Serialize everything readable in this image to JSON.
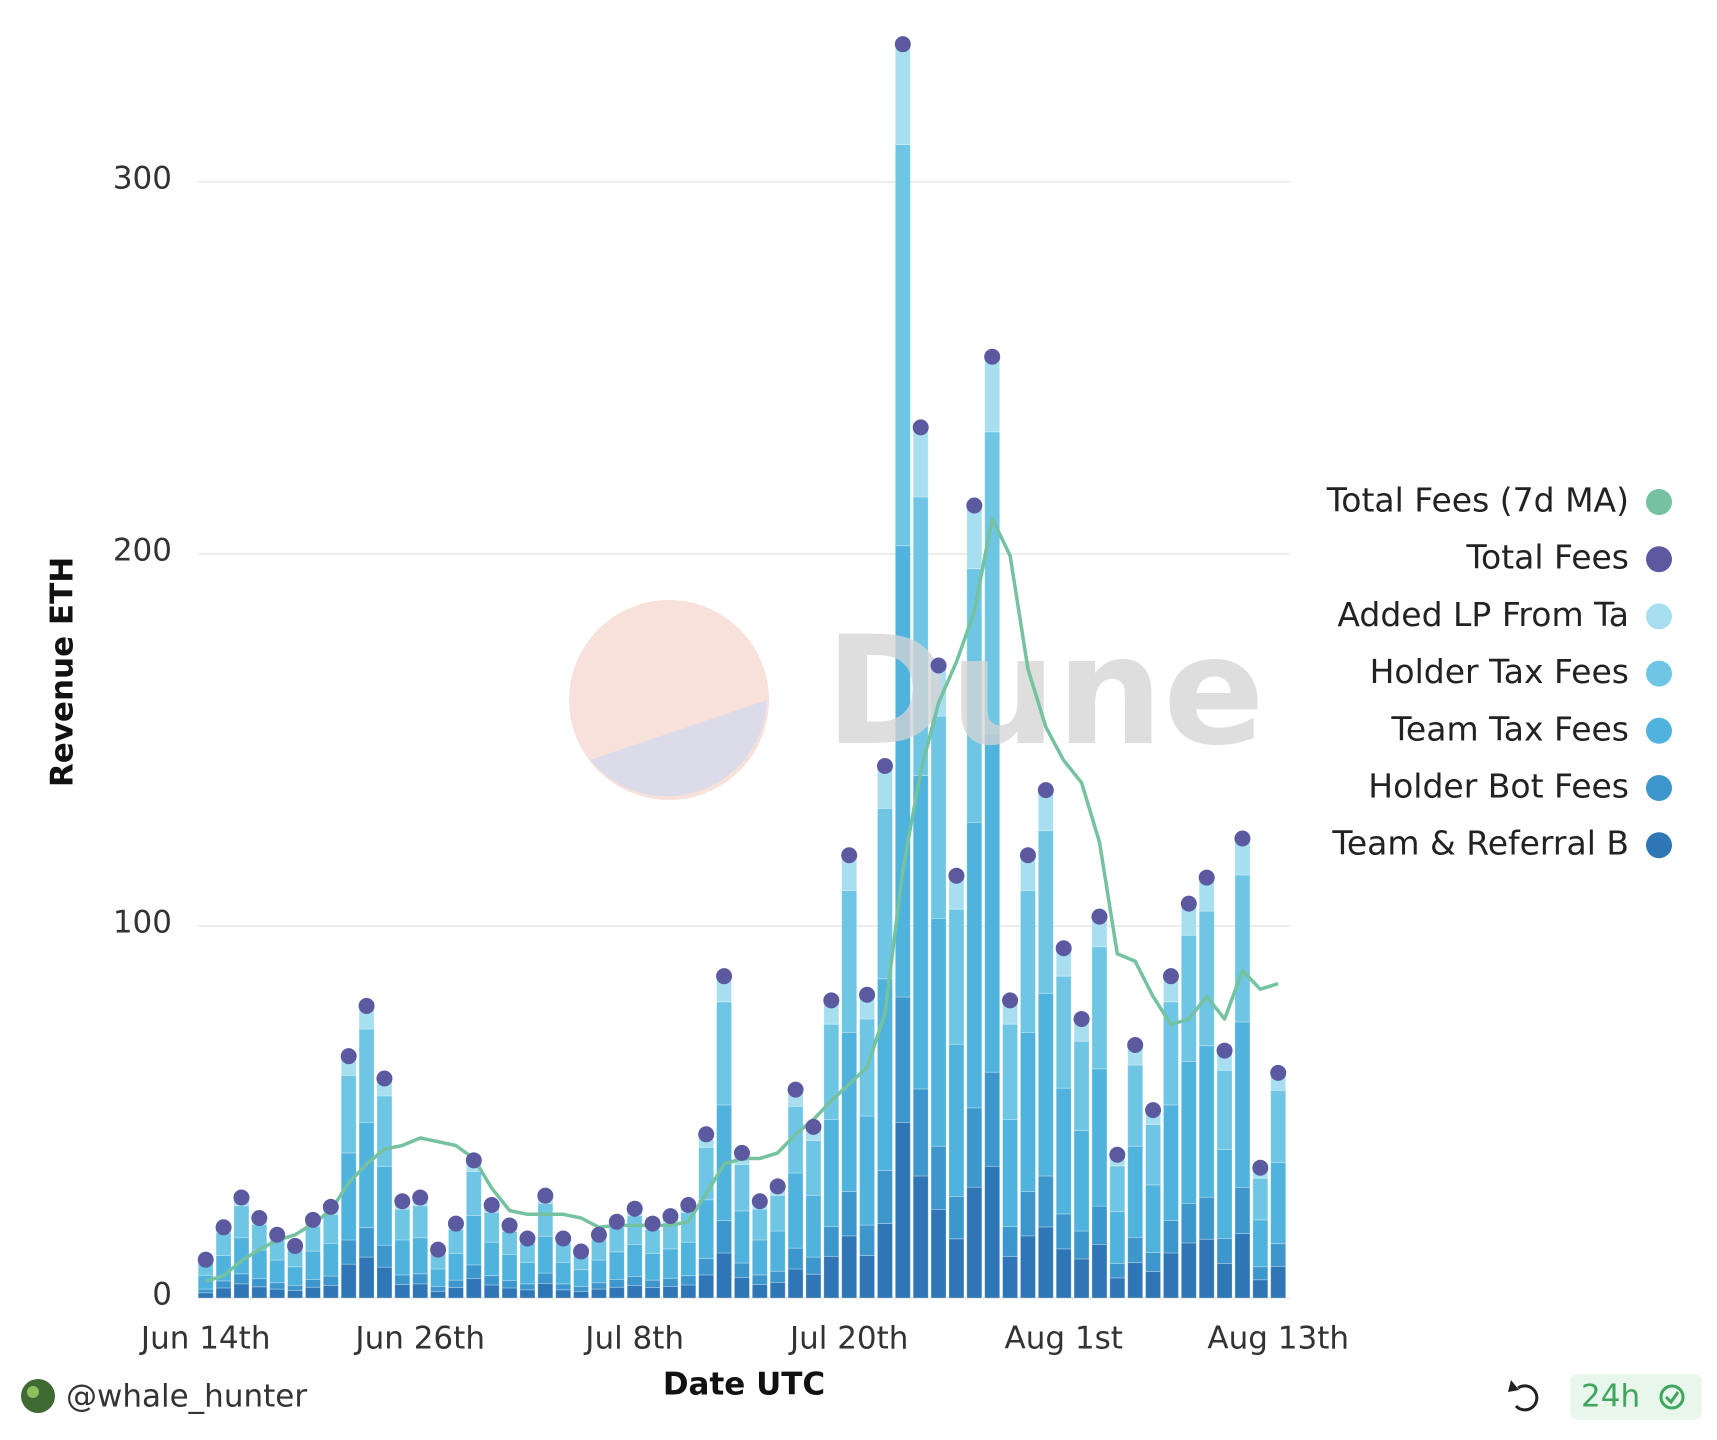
{
  "chart_data": {
    "type": "bar",
    "stacked": true,
    "x_label": "Date UTC",
    "y_label": "Revenue ETH",
    "watermark": "Dune",
    "categories": [
      "Jun 14th",
      null,
      null,
      null,
      null,
      null,
      null,
      null,
      null,
      null,
      null,
      null,
      "Jun 26th",
      null,
      null,
      null,
      null,
      null,
      null,
      null,
      null,
      null,
      null,
      null,
      "Jul 8th",
      null,
      null,
      null,
      null,
      null,
      null,
      null,
      null,
      null,
      null,
      null,
      "Jul 20th",
      null,
      null,
      null,
      null,
      null,
      null,
      null,
      null,
      null,
      null,
      null,
      "Aug 1st",
      null,
      null,
      null,
      null,
      null,
      null,
      null,
      null,
      null,
      null,
      null,
      "Aug 13th"
    ],
    "ylim": [
      0,
      340
    ],
    "yticks": [
      0,
      100,
      200,
      300
    ],
    "grid": true,
    "legend": "right",
    "series": [
      {
        "name": "Total Fees (7d MA)",
        "type": "line",
        "color": "#74c2a0",
        "values": [
          4.5,
          6,
          10,
          13,
          15.5,
          17,
          20,
          23.5,
          31,
          36,
          40,
          41,
          43,
          42,
          41,
          37.5,
          29.5,
          23.5,
          22.5,
          22.5,
          22.5,
          21.5,
          19,
          19.5,
          19.5,
          19.5,
          19.5,
          20.5,
          28,
          36,
          37.5,
          37.5,
          39,
          44,
          48,
          53,
          57.5,
          62,
          76.5,
          115,
          141.5,
          160,
          171,
          184.5,
          209.5,
          199.5,
          169,
          153.5,
          144.5,
          138.5,
          122.5,
          92.5,
          90.5,
          81,
          73.5,
          75,
          81,
          75,
          88,
          83,
          84.5
        ]
      },
      {
        "name": "Total Fees",
        "type": "scatter",
        "color": "#5b5aa0",
        "values": [
          10.3,
          19,
          27,
          21.5,
          17,
          14,
          21,
          24.5,
          65,
          78.5,
          59,
          26,
          27,
          13,
          20,
          37,
          25,
          19.5,
          16,
          27.5,
          16,
          12.5,
          17,
          20.5,
          24,
          20,
          22,
          25,
          44,
          86.5,
          39,
          26,
          30,
          56,
          46,
          80,
          119,
          81.5,
          143,
          337,
          234,
          170,
          113.5,
          213,
          253,
          80,
          119,
          136.5,
          94,
          75,
          102.5,
          38.5,
          68,
          50.5,
          86.5,
          106,
          113,
          66.5,
          123.5,
          35,
          60.5
        ]
      },
      {
        "name": "Added LP From Ta",
        "type": "bar",
        "color": "#a8dff0",
        "values": [
          0.8,
          1.5,
          2.2,
          1.7,
          1.4,
          1.1,
          1.7,
          2.0,
          5.2,
          6.3,
          4.7,
          2.1,
          2.2,
          1.0,
          1.6,
          3.0,
          2.0,
          1.6,
          1.3,
          2.2,
          1.3,
          1.0,
          1.4,
          1.6,
          1.9,
          1.6,
          1.8,
          2.0,
          3.5,
          6.9,
          3.1,
          2.1,
          2.4,
          4.5,
          3.7,
          6.4,
          9.5,
          6.5,
          11.4,
          27.0,
          18.7,
          13.6,
          9.1,
          17.0,
          20.2,
          6.4,
          9.5,
          10.9,
          7.5,
          6.0,
          8.2,
          3.1,
          5.4,
          4.0,
          6.9,
          8.5,
          9.0,
          5.3,
          9.9,
          2.8,
          4.8
        ]
      },
      {
        "name": "Holder Tax Fees",
        "type": "bar",
        "color": "#6ec6e4",
        "values": [
          3.3,
          6.1,
          8.6,
          6.9,
          5.4,
          4.5,
          6.7,
          7.8,
          20.8,
          25.1,
          18.9,
          8.3,
          8.6,
          4.2,
          6.4,
          11.8,
          8.0,
          6.2,
          5.1,
          8.8,
          5.1,
          4.0,
          5.4,
          6.6,
          7.7,
          6.4,
          7.0,
          8.0,
          14.1,
          27.7,
          12.5,
          8.3,
          9.6,
          17.9,
          14.7,
          25.6,
          38.1,
          26.1,
          45.8,
          107.8,
          74.9,
          54.4,
          36.3,
          68.2,
          81.0,
          25.6,
          38.1,
          43.7,
          30.1,
          24.0,
          32.8,
          12.3,
          21.8,
          16.2,
          27.7,
          33.9,
          36.2,
          21.3,
          39.5,
          11.2,
          19.4
        ]
      },
      {
        "name": "Team Tax Fees",
        "type": "bar",
        "color": "#4fb3de",
        "values": [
          3.7,
          6.8,
          9.7,
          7.7,
          6.1,
          5.0,
          7.6,
          8.8,
          23.4,
          28.3,
          21.2,
          9.4,
          9.7,
          4.7,
          7.2,
          13.3,
          9.0,
          7.0,
          5.8,
          9.9,
          5.8,
          4.5,
          6.1,
          7.4,
          8.6,
          7.2,
          7.9,
          9.0,
          15.8,
          31.1,
          14.0,
          9.4,
          10.8,
          20.2,
          16.6,
          28.8,
          42.8,
          29.3,
          51.5,
          121.3,
          84.2,
          61.2,
          40.9,
          76.7,
          91.1,
          28.8,
          42.8,
          49.1,
          33.8,
          27.0,
          36.9,
          13.9,
          24.5,
          18.2,
          31.1,
          38.2,
          40.7,
          23.9,
          44.5,
          12.6,
          21.8
        ]
      },
      {
        "name": "Holder Bot Fees",
        "type": "bar",
        "color": "#3d97cc",
        "values": [
          1.0,
          1.9,
          2.7,
          2.2,
          1.7,
          1.4,
          2.1,
          2.5,
          6.5,
          7.9,
          5.9,
          2.6,
          2.7,
          1.3,
          2.0,
          3.7,
          2.5,
          2.0,
          1.6,
          2.8,
          1.6,
          1.3,
          1.7,
          2.1,
          2.4,
          2.0,
          2.2,
          2.5,
          4.4,
          8.7,
          3.9,
          2.6,
          3.0,
          5.6,
          4.6,
          8.0,
          11.9,
          8.2,
          14.3,
          33.7,
          23.4,
          17.0,
          11.4,
          21.3,
          25.3,
          8.0,
          11.9,
          13.7,
          9.4,
          7.5,
          10.3,
          3.9,
          6.8,
          5.1,
          8.7,
          10.6,
          11.3,
          6.7,
          12.4,
          3.5,
          6.1
        ]
      },
      {
        "name": "Team & Referral B",
        "type": "bar",
        "color": "#2e76b5",
        "values": [
          1.4,
          2.7,
          3.8,
          3.0,
          2.4,
          2.0,
          2.9,
          3.4,
          9.1,
          11.0,
          8.3,
          3.6,
          3.8,
          1.8,
          2.8,
          5.2,
          3.5,
          2.7,
          2.2,
          3.9,
          2.2,
          1.8,
          2.4,
          2.9,
          3.4,
          2.8,
          3.1,
          3.5,
          6.2,
          12.1,
          5.5,
          3.6,
          4.2,
          7.8,
          6.4,
          11.2,
          16.7,
          11.4,
          20.0,
          47.2,
          32.8,
          23.8,
          15.9,
          29.8,
          35.4,
          11.2,
          16.7,
          19.1,
          13.2,
          10.5,
          14.4,
          5.4,
          9.5,
          7.1,
          12.1,
          14.8,
          15.8,
          9.3,
          17.3,
          4.9,
          8.5
        ]
      }
    ]
  },
  "footer": {
    "user": "@whale_hunter",
    "refresh": "24h"
  }
}
